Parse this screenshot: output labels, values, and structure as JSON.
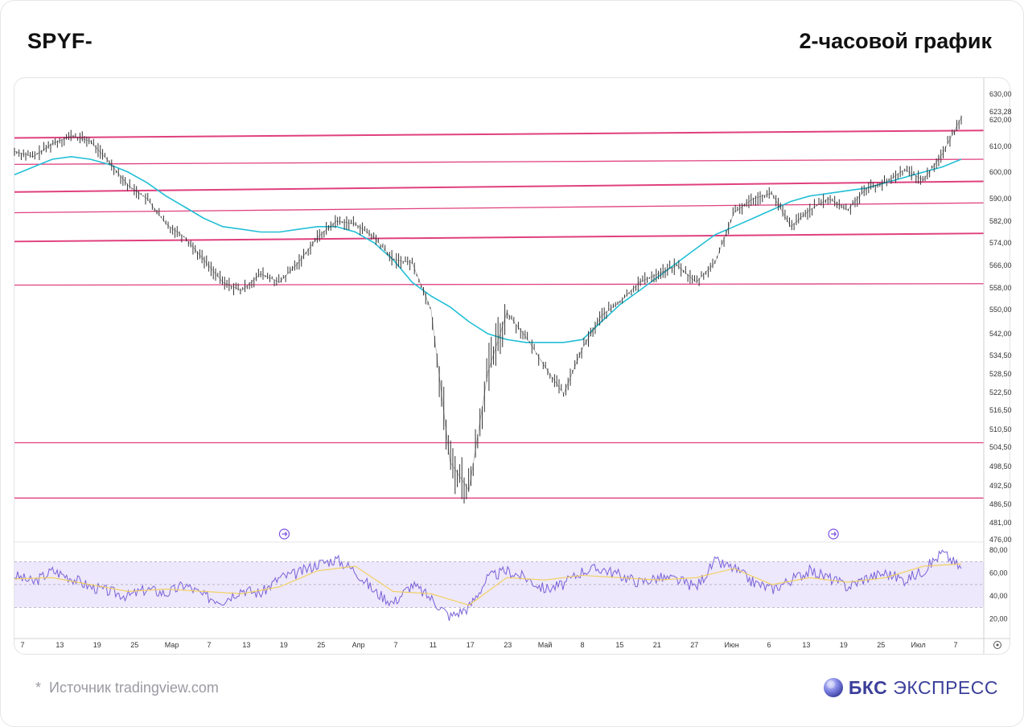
{
  "header": {
    "ticker": "SPYF-",
    "timeframe": "2-часовой график"
  },
  "footer": {
    "star": "*",
    "source": "Источник tradingview.com"
  },
  "brand": {
    "name": "БКС",
    "sub": "ЭКСПРЕСС"
  },
  "colors": {
    "price": "#333333",
    "ma": "#22bfd6",
    "level": "#e0407e",
    "rsi": "#7a62d8",
    "rsi_ma": "#f2cf57",
    "rsi_band": "#ede8fb",
    "brand": "#3b3f9a"
  },
  "icons": {
    "marker": "arrow-right-circle-icon",
    "settings": "gear-icon"
  },
  "chart_data": {
    "type": "line",
    "price_axis": {
      "ticks": [
        {
          "label": "630,00",
          "v": 630
        },
        {
          "label": "623,28",
          "v": 623.28
        },
        {
          "label": "620,00",
          "v": 620
        },
        {
          "label": "610,00",
          "v": 610
        },
        {
          "label": "600,00",
          "v": 600
        },
        {
          "label": "590,00",
          "v": 590
        },
        {
          "label": "582,00",
          "v": 582
        },
        {
          "label": "574,00",
          "v": 574
        },
        {
          "label": "566,00",
          "v": 566
        },
        {
          "label": "558,00",
          "v": 558
        },
        {
          "label": "550,00",
          "v": 550
        },
        {
          "label": "542,00",
          "v": 542
        },
        {
          "label": "534,50",
          "v": 534.5
        },
        {
          "label": "528,50",
          "v": 528.5
        },
        {
          "label": "522,50",
          "v": 522.5
        },
        {
          "label": "516,50",
          "v": 516.5
        },
        {
          "label": "510,50",
          "v": 510.5
        },
        {
          "label": "504,50",
          "v": 504.5
        },
        {
          "label": "498,50",
          "v": 498.5
        },
        {
          "label": "492,50",
          "v": 492.5
        },
        {
          "label": "486,50",
          "v": 486.5
        },
        {
          "label": "481,00",
          "v": 481
        },
        {
          "label": "476,00",
          "v": 476
        }
      ]
    },
    "rsi_axis": {
      "ticks": [
        {
          "label": "80,00",
          "v": 80
        },
        {
          "label": "60,00",
          "v": 60
        },
        {
          "label": "40,00",
          "v": 40
        },
        {
          "label": "20,00",
          "v": 20
        }
      ],
      "band": [
        30,
        70
      ],
      "mid": 50
    },
    "time_axis": {
      "labels": [
        "7",
        "13",
        "19",
        "25",
        "Мар",
        "7",
        "13",
        "19",
        "25",
        "Апр",
        "7",
        "11",
        "17",
        "23",
        "Май",
        "8",
        "15",
        "21",
        "27",
        "Июн",
        "6",
        "13",
        "19",
        "25",
        "Июл",
        "7"
      ]
    },
    "levels": [
      {
        "start": 613.2,
        "end": 616.0
      },
      {
        "start": 603.0,
        "end": 605.0
      },
      {
        "start": 592.5,
        "end": 596.5
      },
      {
        "start": 585.0,
        "end": 588.5
      },
      {
        "start": 574.5,
        "end": 577.5
      },
      {
        "start": 559.0,
        "end": 559.5
      },
      {
        "start": 506.0,
        "end": 506.0
      },
      {
        "start": 488.5,
        "end": 488.5
      }
    ],
    "price": {
      "name": "SPYF-",
      "x": [
        0,
        2,
        4,
        6,
        8,
        10,
        12,
        14,
        16,
        18,
        20,
        22,
        24,
        26,
        28,
        30,
        32,
        34,
        36,
        38,
        40,
        42,
        44,
        46,
        48,
        50,
        52,
        54,
        56,
        58,
        60,
        62,
        64,
        66,
        68,
        70,
        72,
        74,
        76,
        78,
        80,
        82,
        84,
        86,
        88,
        90,
        92,
        94,
        96,
        98,
        100
      ],
      "y": [
        608,
        606,
        611,
        614,
        612,
        604,
        595,
        590,
        581,
        576,
        568,
        560,
        557,
        563,
        560,
        567,
        576,
        582,
        581,
        576,
        568,
        567,
        550,
        500,
        491,
        529,
        549,
        541,
        531,
        522,
        537,
        548,
        553,
        560,
        563,
        566,
        560,
        567,
        585,
        590,
        592,
        580,
        586,
        590,
        586,
        594,
        596,
        601,
        597,
        607,
        621
      ]
    },
    "moving_average": {
      "x": [
        0,
        2,
        4,
        6,
        8,
        10,
        12,
        14,
        16,
        18,
        20,
        22,
        24,
        26,
        28,
        30,
        32,
        34,
        36,
        38,
        40,
        42,
        44,
        46,
        48,
        50,
        52,
        54,
        56,
        58,
        60,
        62,
        64,
        66,
        68,
        70,
        72,
        74,
        76,
        78,
        80,
        82,
        84,
        86,
        88,
        90,
        92,
        94,
        96,
        98,
        100
      ],
      "y": [
        599,
        602,
        605,
        606,
        605,
        603,
        600,
        596,
        591,
        587,
        583,
        580,
        579,
        578,
        578,
        579,
        580,
        580,
        578,
        574,
        568,
        560,
        555,
        551,
        546,
        542,
        540,
        539,
        539,
        539,
        540,
        546,
        552,
        557,
        562,
        567,
        572,
        577,
        580,
        583,
        586,
        589,
        591,
        592,
        593,
        594,
        596,
        598,
        600,
        602,
        605
      ]
    },
    "rsi": {
      "x": [
        0,
        2,
        4,
        6,
        8,
        10,
        12,
        14,
        16,
        18,
        20,
        22,
        24,
        26,
        28,
        30,
        32,
        34,
        36,
        38,
        40,
        42,
        44,
        46,
        48,
        50,
        52,
        54,
        56,
        58,
        60,
        62,
        64,
        66,
        68,
        70,
        72,
        74,
        76,
        78,
        80,
        82,
        84,
        86,
        88,
        90,
        92,
        94,
        96,
        98,
        100
      ],
      "y": [
        58,
        52,
        62,
        56,
        48,
        44,
        40,
        46,
        42,
        50,
        40,
        36,
        46,
        42,
        56,
        60,
        68,
        72,
        62,
        44,
        34,
        50,
        38,
        22,
        30,
        56,
        62,
        56,
        46,
        50,
        62,
        64,
        58,
        52,
        56,
        54,
        48,
        70,
        64,
        52,
        46,
        54,
        62,
        56,
        48,
        56,
        60,
        54,
        62,
        78,
        64
      ]
    },
    "rsi_ma": {
      "x": [
        0,
        4,
        8,
        12,
        16,
        20,
        24,
        28,
        32,
        36,
        40,
        44,
        48,
        52,
        56,
        60,
        64,
        68,
        72,
        76,
        80,
        84,
        88,
        92,
        96,
        100
      ],
      "y": [
        55,
        56,
        50,
        44,
        46,
        44,
        42,
        48,
        62,
        66,
        44,
        42,
        32,
        56,
        54,
        58,
        56,
        54,
        56,
        64,
        50,
        56,
        52,
        56,
        66,
        68
      ]
    },
    "markers": [
      {
        "name": "marker-1",
        "x": 28.5
      },
      {
        "name": "marker-2",
        "x": 86.5
      }
    ]
  }
}
